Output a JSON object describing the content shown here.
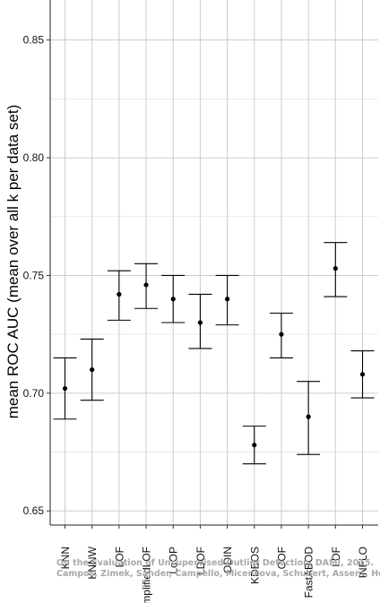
{
  "chart_data": {
    "type": "scatter",
    "ylabel": "mean ROC AUC (mean over all k per data set)",
    "xlabel": "",
    "ylim": [
      0.644,
      0.867
    ],
    "yticks": [
      0.65,
      0.7,
      0.75,
      0.8,
      0.85
    ],
    "ytick_labels": [
      "0.65",
      "0.70",
      "0.75",
      "0.80",
      "0.85"
    ],
    "grid": true,
    "error_bars": true,
    "categories": [
      "KNN",
      "KNNW",
      "LOF",
      "SimplifiedLOF",
      "LoOP",
      "LDOF",
      "ODIN",
      "KDEOS",
      "COF",
      "FastABOD",
      "LDF",
      "INFLO"
    ],
    "series": [
      {
        "values": [
          0.702,
          0.71,
          0.742,
          0.746,
          0.74,
          0.73,
          0.74,
          0.678,
          0.725,
          0.69,
          0.753,
          0.708
        ],
        "lower": [
          0.689,
          0.697,
          0.731,
          0.736,
          0.73,
          0.719,
          0.729,
          0.67,
          0.715,
          0.674,
          0.741,
          0.698
        ],
        "upper": [
          0.715,
          0.723,
          0.752,
          0.755,
          0.75,
          0.742,
          0.75,
          0.686,
          0.734,
          0.705,
          0.764,
          0.718
        ]
      }
    ],
    "colors": {
      "point": "#000000",
      "grid": "#cccccc",
      "background": "#ffffff"
    }
  },
  "watermark": {
    "line1": "On the Evaluation of Unsupervised Outlier Detection, DAMI, 2015.",
    "line2": "Campos, Zimek, Sander, Campello, Micenkova, Schubert, Assent, Houle"
  }
}
